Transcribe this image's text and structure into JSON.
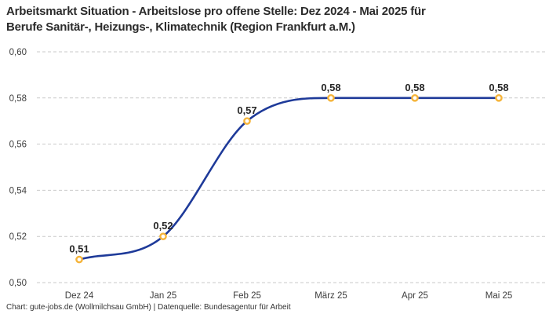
{
  "header": {
    "title_line1": "Arbeitsmarkt Situation - Arbeitslose pro offene Stelle: Dez 2024 - Mai 2025 für",
    "title_line2": "Berufe Sanitär-, Heizungs-, Klimatechnik (Region Frankfurt a.M.)"
  },
  "footer": {
    "credit": "Chart: gute-jobs.de (Wollmilchsau GmbH) | Datenquelle: Bundesagentur für Arbeit"
  },
  "chart_data": {
    "type": "line",
    "title": "Arbeitsmarkt Situation - Arbeitslose pro offene Stelle: Dez 2024 - Mai 2025 für Berufe Sanitär-, Heizungs-, Klimatechnik (Region Frankfurt a.M.)",
    "categories": [
      "Dez 24",
      "Jan 25",
      "Feb 25",
      "März 25",
      "Apr 25",
      "Mai 25"
    ],
    "values": [
      0.51,
      0.52,
      0.57,
      0.58,
      0.58,
      0.58
    ],
    "value_labels": [
      "0,51",
      "0,52",
      "0,57",
      "0,58",
      "0,58",
      "0,58"
    ],
    "y_ticks": [
      0.5,
      0.52,
      0.54,
      0.56,
      0.58,
      0.6
    ],
    "y_tick_labels": [
      "0,50",
      "0,52",
      "0,54",
      "0,56",
      "0,58",
      "0,60"
    ],
    "ylim": [
      0.5,
      0.6
    ],
    "xlabel": "",
    "ylabel": "",
    "legend": "none",
    "grid": "horizontal-dashed",
    "curve": "monotone",
    "colors": {
      "line": "#1e3a99",
      "marker_stroke": "#f5b43a",
      "marker_fill": "#ffffff",
      "grid": "#c9c9c9",
      "tick_text": "#3d3d3d",
      "title_text": "#2b2b2b"
    }
  }
}
